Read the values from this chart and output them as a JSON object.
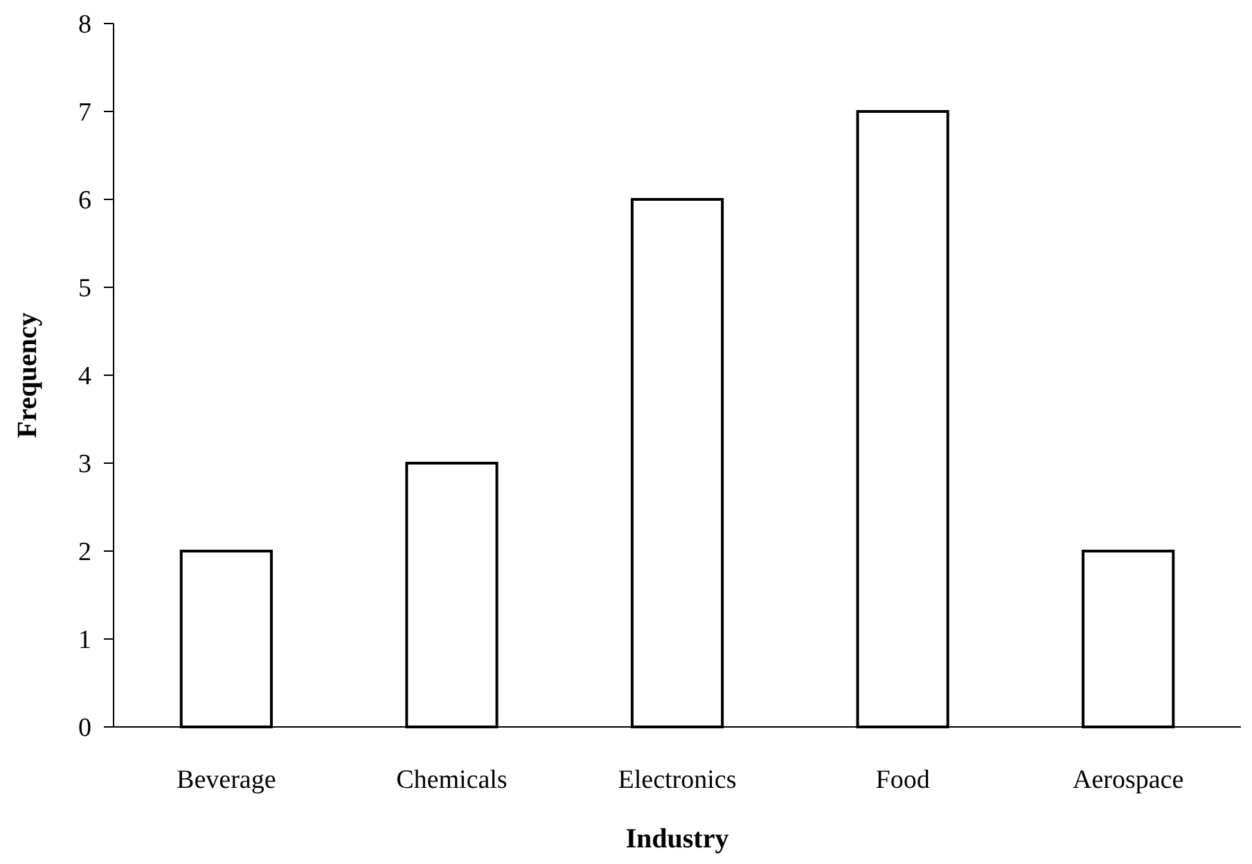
{
  "chart_data": {
    "type": "bar",
    "xlabel": "Industry",
    "ylabel": "Frequency",
    "categories": [
      "Beverage",
      "Chemicals",
      "Electronics",
      "Food",
      "Aerospace"
    ],
    "values": [
      2,
      3,
      6,
      7,
      2
    ],
    "color": "#ffffff",
    "ylim": [
      0,
      8
    ],
    "yticks": [
      0,
      1,
      2,
      3,
      4,
      5,
      6,
      7,
      8
    ],
    "grid": false
  }
}
